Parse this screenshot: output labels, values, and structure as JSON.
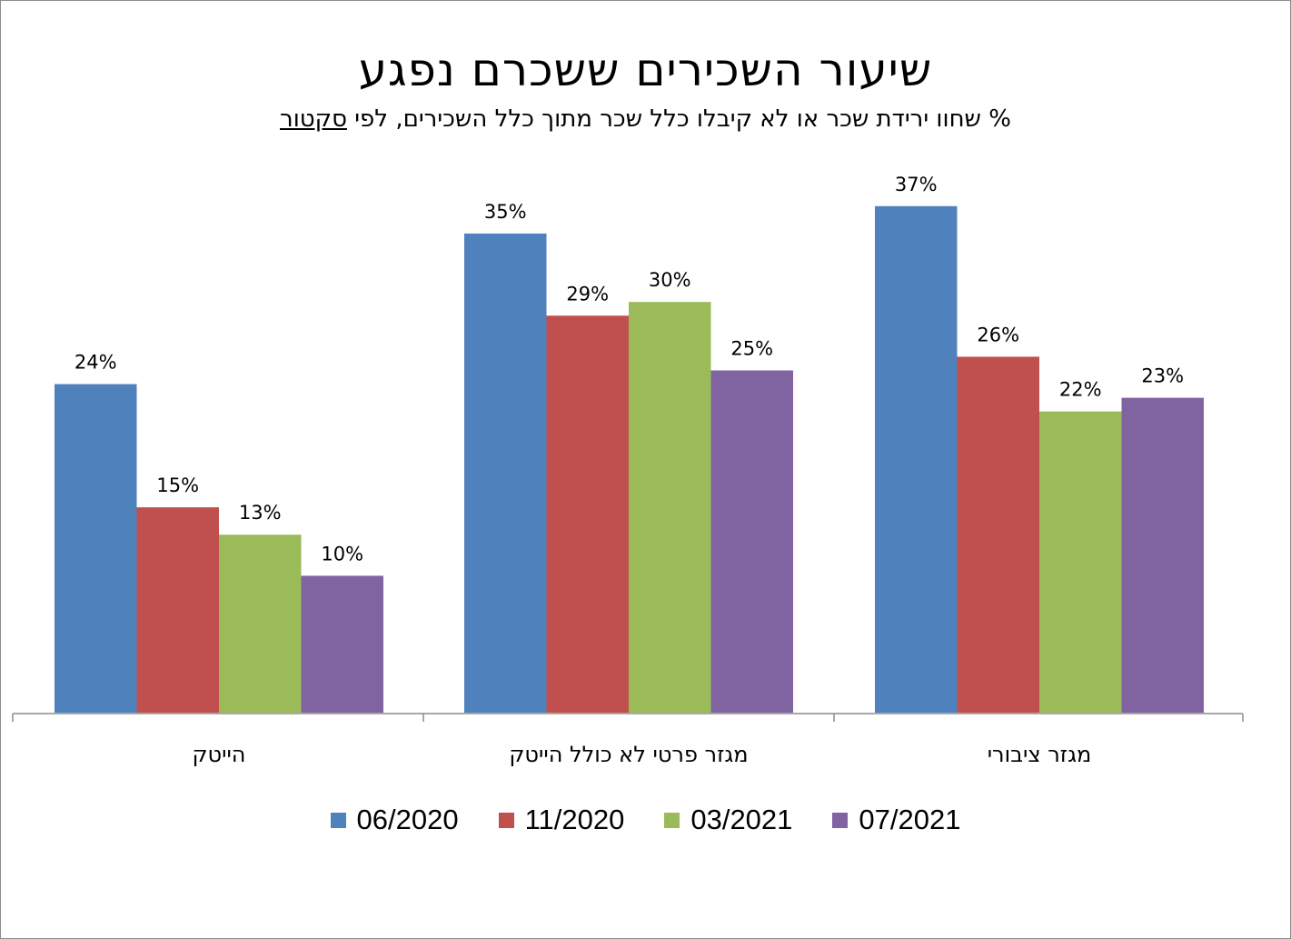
{
  "title": "שיעור השכירים ששכרם נפגע",
  "subtitle_pre": "% שחוו ירידת שכר או לא קיבלו כלל שכר מתוך כלל השכירים, לפי ",
  "subtitle_underlined": "סקטור",
  "chart_data": {
    "type": "bar",
    "categories": [
      "הייטק",
      "מגזר פרטי לא כולל הייטק",
      "מגזר ציבורי"
    ],
    "series": [
      {
        "name": "06/2020",
        "color": "#4f81bd",
        "values": [
          24,
          35,
          37
        ],
        "labels": [
          "24%",
          "35%",
          "37%"
        ]
      },
      {
        "name": "11/2020",
        "color": "#c0504d",
        "values": [
          15,
          29,
          26
        ],
        "labels": [
          "15%",
          "29%",
          "26%"
        ]
      },
      {
        "name": "03/2021",
        "color": "#9bbb59",
        "values": [
          13,
          30,
          22
        ],
        "labels": [
          "13%",
          "30%",
          "22%"
        ]
      },
      {
        "name": "07/2021",
        "color": "#8064a2",
        "values": [
          10,
          25,
          23
        ],
        "labels": [
          "10%",
          "25%",
          "23%"
        ]
      }
    ],
    "ylim": [
      0,
      40
    ],
    "grid": false,
    "legend": "bottom"
  }
}
